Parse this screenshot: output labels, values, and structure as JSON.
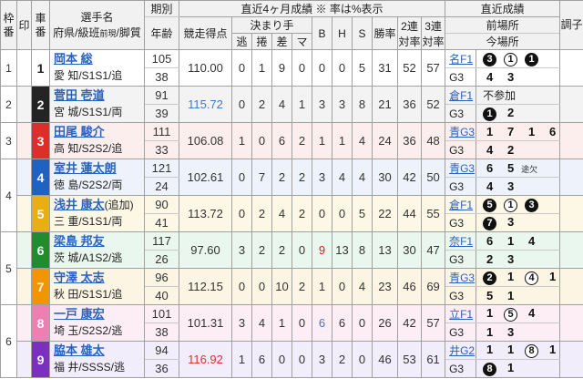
{
  "palette": {
    "link_blue": "#2a62c0",
    "score_red": "#e03030",
    "score_blue": "#3b7bc8",
    "header_bg": "#f1f1f1"
  },
  "header": {
    "frame": "枠番",
    "mark": "印",
    "car": "車番",
    "name_line1": "選手名",
    "name_line2_pre": "府県/級班",
    "name_line2_small": "前現",
    "name_line2_post": "/脚質",
    "period": "期別",
    "age": "年齢",
    "recent4_group": "直近4ヶ月成績 ※ 率は%表示",
    "score": "競走得点",
    "kimarite_group": "決まり手",
    "kimarite_cols": [
      "逃",
      "捲",
      "差",
      "マ"
    ],
    "b": "B",
    "h": "H",
    "s": "S",
    "win_rate": "勝率",
    "q2_line1": "2連",
    "q2_line2": "対率",
    "q3_line1": "3連",
    "q3_line2": "対率",
    "recent_group": "直近成績",
    "prev_meet": "前場所",
    "today_meet": "今場所",
    "condition": "調子"
  },
  "rows": [
    {
      "frame": "1",
      "frame_span": 1,
      "car": "1",
      "car_bg": "#ffffff",
      "car_fg": "#222222",
      "row_bg": "#ffffff",
      "name": "岡本 総",
      "name_suffix": "",
      "profile": "愛 知/S1S1/追",
      "period": "105",
      "age": "38",
      "score": "110.00",
      "score_color": "#333333",
      "kimarite": [
        "0",
        "1",
        "9",
        "0"
      ],
      "b": "0",
      "b_color": "#333333",
      "h": "0",
      "s": "5",
      "win": "31",
      "q2": "52",
      "q3": "57",
      "prev_venue": "名F1",
      "prev_results": [
        {
          "text": "3",
          "style": "filled"
        },
        {
          "text": "1",
          "style": "outline"
        },
        {
          "text": "1",
          "style": "filled"
        }
      ],
      "today_venue": "G3",
      "today_results": [
        {
          "text": "4",
          "style": "plain"
        },
        {
          "text": "3",
          "style": "plain"
        }
      ]
    },
    {
      "frame": "2",
      "frame_span": 1,
      "car": "2",
      "car_bg": "#242424",
      "car_fg": "#ffffff",
      "row_bg": "#f3f3f3",
      "name": "菅田 壱道",
      "name_suffix": "",
      "profile": "宮 城/S1S1/両",
      "period": "91",
      "age": "39",
      "score": "115.72",
      "score_color": "#3b7bc8",
      "kimarite": [
        "0",
        "2",
        "4",
        "1"
      ],
      "b": "3",
      "b_color": "#333333",
      "h": "3",
      "s": "8",
      "win": "21",
      "q2": "36",
      "q3": "52",
      "prev_venue": "倉F1",
      "prev_results": [
        {
          "text": "不参加",
          "style": "text"
        }
      ],
      "today_venue": "G3",
      "today_results": [
        {
          "text": "1",
          "style": "filled"
        },
        {
          "text": "2",
          "style": "plain"
        }
      ]
    },
    {
      "frame": "3",
      "frame_span": 1,
      "car": "3",
      "car_bg": "#dd2f2a",
      "car_fg": "#ffffff",
      "row_bg": "#fdeeee",
      "name": "田尾 駿介",
      "name_suffix": "",
      "profile": "高 知/S2S2/追",
      "period": "111",
      "age": "33",
      "score": "106.08",
      "score_color": "#333333",
      "kimarite": [
        "1",
        "0",
        "6",
        "2"
      ],
      "b": "1",
      "b_color": "#333333",
      "h": "1",
      "s": "4",
      "win": "24",
      "q2": "36",
      "q3": "48",
      "prev_venue": "青G3",
      "prev_results": [
        {
          "text": "1",
          "style": "plain"
        },
        {
          "text": "7",
          "style": "plain"
        },
        {
          "text": "1",
          "style": "plain"
        },
        {
          "text": "6",
          "style": "plain"
        }
      ],
      "today_venue": "G3",
      "today_results": [
        {
          "text": "4",
          "style": "plain"
        },
        {
          "text": "2",
          "style": "plain"
        }
      ]
    },
    {
      "frame": "4",
      "frame_span": 2,
      "car": "4",
      "car_bg": "#1e63c4",
      "car_fg": "#ffffff",
      "row_bg": "#edf2fb",
      "name": "室井 蓮太朗",
      "name_suffix": "",
      "profile": "徳 島/S2S2/両",
      "period": "121",
      "age": "24",
      "score": "102.61",
      "score_color": "#333333",
      "kimarite": [
        "0",
        "7",
        "2",
        "2"
      ],
      "b": "3",
      "b_color": "#333333",
      "h": "4",
      "s": "4",
      "win": "30",
      "q2": "42",
      "q3": "50",
      "prev_venue": "青G3",
      "prev_results": [
        {
          "text": "6",
          "style": "plain"
        },
        {
          "text": "5",
          "style": "plain"
        },
        {
          "text": "途欠",
          "style": "note"
        }
      ],
      "today_venue": "G3",
      "today_results": [
        {
          "text": "4",
          "style": "plain"
        },
        {
          "text": "3",
          "style": "plain"
        }
      ]
    },
    {
      "frame": null,
      "frame_span": 0,
      "car": "5",
      "car_bg": "#e8ae13",
      "car_fg": "#ffffff",
      "row_bg": "#fdf8e6",
      "name": "浅井 康太",
      "name_suffix": "(追加)",
      "profile": "三 重/S1S1/両",
      "period": "90",
      "age": "41",
      "score": "113.72",
      "score_color": "#333333",
      "kimarite": [
        "0",
        "2",
        "4",
        "2"
      ],
      "b": "0",
      "b_color": "#333333",
      "h": "0",
      "s": "5",
      "win": "22",
      "q2": "44",
      "q3": "55",
      "prev_venue": "倉F1",
      "prev_results": [
        {
          "text": "5",
          "style": "filled"
        },
        {
          "text": "1",
          "style": "outline"
        },
        {
          "text": "3",
          "style": "filled"
        }
      ],
      "today_venue": "G3",
      "today_results": [
        {
          "text": "7",
          "style": "filled"
        },
        {
          "text": "3",
          "style": "plain"
        }
      ]
    },
    {
      "frame": "5",
      "frame_span": 2,
      "car": "6",
      "car_bg": "#1f8c2f",
      "car_fg": "#ffffff",
      "row_bg": "#eaf7ee",
      "name": "梁島 邦友",
      "name_suffix": "",
      "profile": "茨 城/A1S2/逃",
      "period": "117",
      "age": "26",
      "score": "97.60",
      "score_color": "#333333",
      "kimarite": [
        "3",
        "2",
        "2",
        "0"
      ],
      "b": "9",
      "b_color": "#dd2222",
      "h": "13",
      "s": "8",
      "win": "13",
      "q2": "30",
      "q3": "47",
      "prev_venue": "奈F1",
      "prev_results": [
        {
          "text": "6",
          "style": "plain"
        },
        {
          "text": "1",
          "style": "plain"
        },
        {
          "text": "4",
          "style": "plain"
        }
      ],
      "today_venue": "G3",
      "today_results": [
        {
          "text": "2",
          "style": "plain"
        },
        {
          "text": "3",
          "style": "plain"
        }
      ]
    },
    {
      "frame": null,
      "frame_span": 0,
      "car": "7",
      "car_bg": "#f29500",
      "car_fg": "#ffffff",
      "row_bg": "#fdf5e3",
      "name": "守澤 太志",
      "name_suffix": "",
      "profile": "秋 田/S1S1/追",
      "period": "96",
      "age": "40",
      "score": "112.15",
      "score_color": "#333333",
      "kimarite": [
        "0",
        "0",
        "10",
        "2"
      ],
      "b": "1",
      "b_color": "#333333",
      "h": "0",
      "s": "4",
      "win": "23",
      "q2": "46",
      "q3": "69",
      "prev_venue": "青G3",
      "prev_results": [
        {
          "text": "2",
          "style": "filled"
        },
        {
          "text": "1",
          "style": "plain"
        },
        {
          "text": "4",
          "style": "outline"
        },
        {
          "text": "1",
          "style": "plain"
        }
      ],
      "today_venue": "G3",
      "today_results": [
        {
          "text": "5",
          "style": "plain"
        },
        {
          "text": "1",
          "style": "plain"
        }
      ]
    },
    {
      "frame": "6",
      "frame_span": 2,
      "car": "8",
      "car_bg": "#ef7fb3",
      "car_fg": "#ffffff",
      "row_bg": "#fdeef6",
      "name": "一戸 康宏",
      "name_suffix": "",
      "profile": "埼 玉/S2S2/逃",
      "period": "101",
      "age": "38",
      "score": "101.31",
      "score_color": "#333333",
      "kimarite": [
        "3",
        "4",
        "1",
        "0"
      ],
      "b": "6",
      "b_color": "#3b7bc8",
      "h": "6",
      "s": "0",
      "win": "26",
      "q2": "42",
      "q3": "57",
      "prev_venue": "立F1",
      "prev_results": [
        {
          "text": "1",
          "style": "plain"
        },
        {
          "text": "5",
          "style": "outline"
        },
        {
          "text": "4",
          "style": "plain"
        }
      ],
      "today_venue": "G3",
      "today_results": [
        {
          "text": "1",
          "style": "plain"
        },
        {
          "text": "3",
          "style": "plain"
        }
      ]
    },
    {
      "frame": null,
      "frame_span": 0,
      "car": "9",
      "car_bg": "#7a2fc0",
      "car_fg": "#ffffff",
      "row_bg": "#f1edfa",
      "name": "脇本 雄太",
      "name_suffix": "",
      "profile": "福 井/SSSS/逃",
      "period": "94",
      "age": "36",
      "score": "116.92",
      "score_color": "#e03030",
      "kimarite": [
        "1",
        "6",
        "0",
        "0"
      ],
      "b": "3",
      "b_color": "#333333",
      "h": "2",
      "s": "0",
      "win": "46",
      "q2": "53",
      "q3": "61",
      "prev_venue": "井G2",
      "prev_results": [
        {
          "text": "1",
          "style": "plain"
        },
        {
          "text": "1",
          "style": "plain"
        },
        {
          "text": "8",
          "style": "outline"
        },
        {
          "text": "1",
          "style": "plain"
        }
      ],
      "today_venue": "G3",
      "today_results": [
        {
          "text": "8",
          "style": "filled"
        },
        {
          "text": "1",
          "style": "plain"
        }
      ]
    }
  ]
}
